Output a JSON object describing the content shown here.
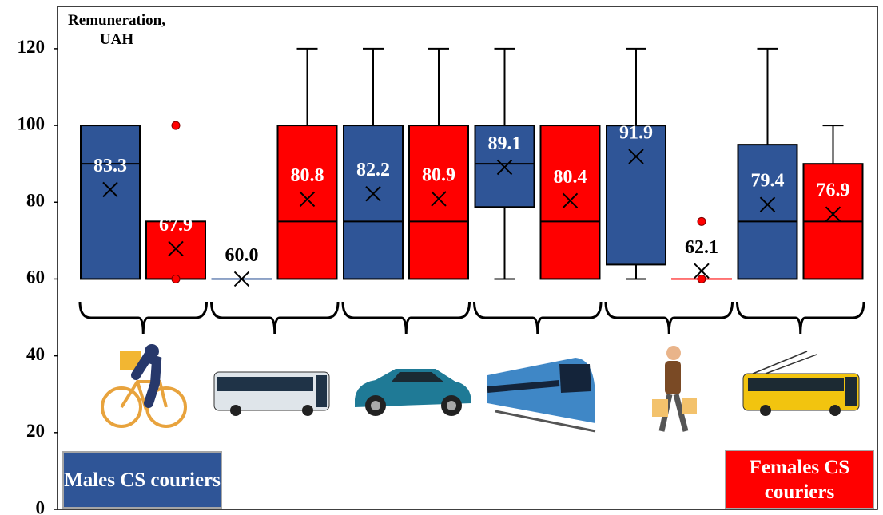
{
  "chart_data": {
    "type": "box",
    "ylabel": "Remuneration, UAH",
    "categories": [
      null,
      null,
      null,
      null,
      null,
      null
    ],
    "ylim": [
      0,
      131
    ],
    "yticks": [
      0,
      20,
      40,
      60,
      80,
      100,
      120
    ],
    "grid": false,
    "series": [
      {
        "name": "Males CS couriers",
        "color": "#2f5597",
        "values": [
          83.3,
          60.0,
          82.2,
          89.1,
          91.9,
          79.4
        ],
        "value_labels": [
          "83.3",
          "60.0",
          "82.2",
          "89.1",
          "91.9",
          "79.4"
        ],
        "whisker_low": [
          60,
          60,
          60,
          60,
          60,
          60
        ],
        "q1": [
          60,
          60,
          60,
          78.75,
          63.75,
          60
        ],
        "median": [
          90,
          60,
          75,
          90,
          100,
          75
        ],
        "q3": [
          100,
          60,
          100,
          100,
          100,
          95
        ],
        "whisker_high": [
          100,
          60,
          120,
          120,
          120,
          120
        ],
        "outliers": [
          [],
          [],
          [],
          [],
          [],
          []
        ]
      },
      {
        "name": "Females CS couriers",
        "color": "#ff0000",
        "values": [
          67.9,
          80.8,
          80.9,
          80.4,
          62.1,
          76.9
        ],
        "value_labels": [
          "67.9",
          "80.8",
          "80.9",
          "80.4",
          "62.1",
          "76.9"
        ],
        "whisker_low": [
          60,
          60,
          60,
          60,
          60,
          60
        ],
        "q1": [
          60,
          60,
          60,
          60,
          60,
          60
        ],
        "median": [
          60,
          75,
          75,
          75,
          60,
          75
        ],
        "q3": [
          75,
          100,
          100,
          100,
          60,
          90
        ],
        "whisker_high": [
          75,
          120,
          120,
          100,
          60,
          100
        ],
        "outliers": [
          [
            100,
            60
          ],
          [],
          [],
          [],
          [
            75,
            60
          ],
          []
        ]
      }
    ]
  }
}
